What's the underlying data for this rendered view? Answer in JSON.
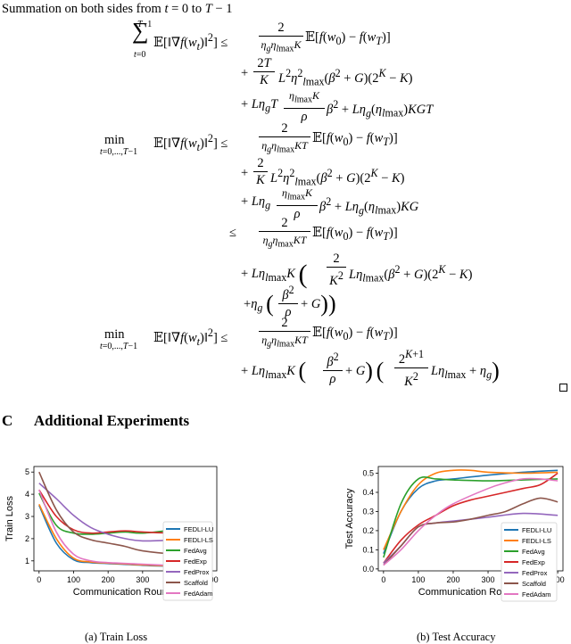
{
  "proof": {
    "intro": "Summation on both sides from t = 0 to T − 1",
    "lines": [
      "Σ_{t=0}^{T−1} 𝔼[‖∇f(w_t)‖²] ≤ (2 / (η_g η_{l_max} K)) 𝔼[f(w_0) − f(w_T)]",
      "+ (2T/K) L² η_{l_max}² (β² + G)(2^K − K)",
      "+ Lη_g T (η_{l_max} K / ρ) β² + Lη_g(η_{l_max}) KGT",
      "min_{t=0,...,T−1} 𝔼[‖∇f(w_t)‖²] ≤ (2 / (η_g η_{l_max} KT)) 𝔼[f(w_0) − f(w_T)]",
      "+ (2/K) L² η_{l_max}² (β² + G)(2^K − K)",
      "+ Lη_g (η_{l_max} K / ρ) β² + Lη_g(η_{l_max}) KG",
      "≤ (2 / (η_g η_max KT)) 𝔼[f(w_0) − f(w_T)]",
      "+ Lη_{l_max} K ( (2/K²) Lη_{l_max}(β² + G)(2^K − K)",
      "+ η_g ( β²/ρ + G ) )",
      "min_{t=0,...,T−1} 𝔼[‖∇f(w_t)‖²] ≤ (2 / (η_g η_{l_max} KT)) 𝔼[f(w_0) − f(w_T)]",
      "+ Lη_{l_max} K ( β²/ρ + G ) ( (2^{K+1}/K²) Lη_{l_max} + η_g )"
    ]
  },
  "section": {
    "number": "C",
    "title": "Additional Experiments"
  },
  "colors": {
    "FEDLI-LU": "#1f77b4",
    "FEDLI-LS": "#ff7f0e",
    "FedAvg": "#2ca02c",
    "FedExp": "#d62728",
    "FedProx": "#9467bd",
    "Scaffold": "#8c564b",
    "FedAdam": "#e377c2"
  },
  "figures": [
    {
      "caption": "(a) Train Loss"
    },
    {
      "caption": "(b) Test Accuracy"
    }
  ],
  "chart_data": [
    {
      "type": "line",
      "xlabel": "Communication Rounds",
      "ylabel": "Train Loss",
      "xlim": [
        -15,
        515
      ],
      "ylim": [
        0.55,
        5.25
      ],
      "xticks": [
        0,
        100,
        200,
        300,
        400,
        500
      ],
      "yticks": [
        1,
        2,
        3,
        4,
        5
      ],
      "legend": "right",
      "series": [
        {
          "name": "FEDLI-LU",
          "x": [
            0,
            50,
            100,
            150,
            200,
            300,
            400,
            500
          ],
          "y": [
            3.5,
            1.8,
            1.05,
            0.92,
            0.88,
            0.8,
            0.75,
            0.72
          ]
        },
        {
          "name": "FEDLI-LS",
          "x": [
            0,
            50,
            100,
            150,
            200,
            300,
            400,
            500
          ],
          "y": [
            3.55,
            2.0,
            1.12,
            0.95,
            0.9,
            0.82,
            0.76,
            0.72
          ]
        },
        {
          "name": "FedAvg",
          "x": [
            0,
            50,
            100,
            150,
            200,
            250,
            300,
            400,
            500
          ],
          "y": [
            4.05,
            2.6,
            2.25,
            2.2,
            2.25,
            2.3,
            2.25,
            2.4,
            2.45
          ]
        },
        {
          "name": "FedExp",
          "x": [
            0,
            50,
            100,
            150,
            200,
            250,
            300,
            400,
            500
          ],
          "y": [
            4.2,
            3.0,
            2.4,
            2.25,
            2.3,
            2.35,
            2.3,
            2.25,
            2.3
          ]
        },
        {
          "name": "FedProx",
          "x": [
            0,
            50,
            100,
            150,
            200,
            250,
            300,
            400,
            500
          ],
          "y": [
            4.5,
            3.8,
            3.05,
            2.5,
            2.2,
            2.0,
            1.9,
            1.95,
            2.05
          ]
        },
        {
          "name": "Scaffold",
          "x": [
            0,
            50,
            100,
            150,
            200,
            250,
            300,
            400,
            500
          ],
          "y": [
            5.0,
            3.3,
            2.3,
            1.95,
            1.8,
            1.65,
            1.45,
            1.3,
            1.3
          ]
        },
        {
          "name": "FedAdam",
          "x": [
            0,
            50,
            100,
            150,
            200,
            300,
            400,
            500
          ],
          "y": [
            4.2,
            2.3,
            1.3,
            1.0,
            0.92,
            0.85,
            0.78,
            0.73
          ]
        }
      ]
    },
    {
      "type": "line",
      "xlabel": "Communication Rounds",
      "ylabel": "Test Accuracy",
      "xlim": [
        -15,
        515
      ],
      "ylim": [
        -0.01,
        0.535
      ],
      "xticks": [
        0,
        100,
        200,
        300,
        400,
        500
      ],
      "yticks": [
        0.0,
        0.1,
        0.2,
        0.3,
        0.4,
        0.5
      ],
      "legend": "right",
      "series": [
        {
          "name": "FEDLI-LU",
          "x": [
            0,
            50,
            100,
            150,
            200,
            300,
            400,
            500
          ],
          "y": [
            0.08,
            0.3,
            0.42,
            0.46,
            0.47,
            0.49,
            0.505,
            0.515
          ]
        },
        {
          "name": "FEDLI-LS",
          "x": [
            0,
            50,
            100,
            150,
            200,
            250,
            300,
            400,
            500
          ],
          "y": [
            0.1,
            0.3,
            0.44,
            0.5,
            0.515,
            0.515,
            0.505,
            0.5,
            0.505
          ]
        },
        {
          "name": "FedAvg",
          "x": [
            0,
            50,
            100,
            150,
            200,
            300,
            400,
            500
          ],
          "y": [
            0.06,
            0.34,
            0.47,
            0.47,
            0.465,
            0.46,
            0.465,
            0.47
          ]
        },
        {
          "name": "FedExp",
          "x": [
            0,
            50,
            100,
            150,
            200,
            250,
            300,
            400,
            450,
            500
          ],
          "y": [
            0.03,
            0.15,
            0.23,
            0.28,
            0.33,
            0.36,
            0.38,
            0.42,
            0.44,
            0.5
          ]
        },
        {
          "name": "FedProx",
          "x": [
            0,
            50,
            100,
            150,
            200,
            300,
            400,
            500
          ],
          "y": [
            0.03,
            0.12,
            0.22,
            0.24,
            0.25,
            0.27,
            0.29,
            0.28
          ]
        },
        {
          "name": "Scaffold",
          "x": [
            0,
            50,
            100,
            150,
            200,
            250,
            300,
            350,
            400,
            450,
            500
          ],
          "y": [
            0.02,
            0.12,
            0.22,
            0.24,
            0.245,
            0.26,
            0.28,
            0.3,
            0.34,
            0.37,
            0.35
          ]
        },
        {
          "name": "FedAdam",
          "x": [
            0,
            50,
            100,
            150,
            200,
            300,
            350,
            400,
            450,
            500
          ],
          "y": [
            0.02,
            0.1,
            0.2,
            0.28,
            0.34,
            0.42,
            0.45,
            0.47,
            0.47,
            0.46
          ]
        }
      ]
    }
  ]
}
